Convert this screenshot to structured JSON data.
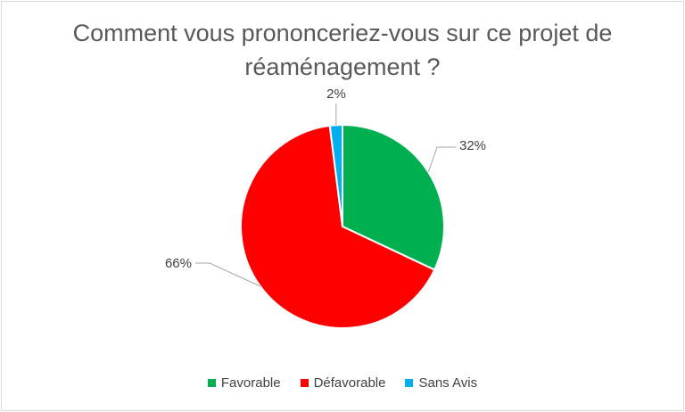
{
  "chart_data": {
    "type": "pie",
    "title": "Comment vous prononceriez-vous sur ce projet de réaménagement ?",
    "categories": [
      "Favorable",
      "Défavorable",
      "Sans Avis"
    ],
    "values": [
      32,
      66,
      2
    ],
    "data_labels": [
      "32%",
      "66%",
      "2%"
    ],
    "colors": [
      "#00B050",
      "#FF0000",
      "#00B0F0"
    ],
    "legend_position": "bottom"
  }
}
